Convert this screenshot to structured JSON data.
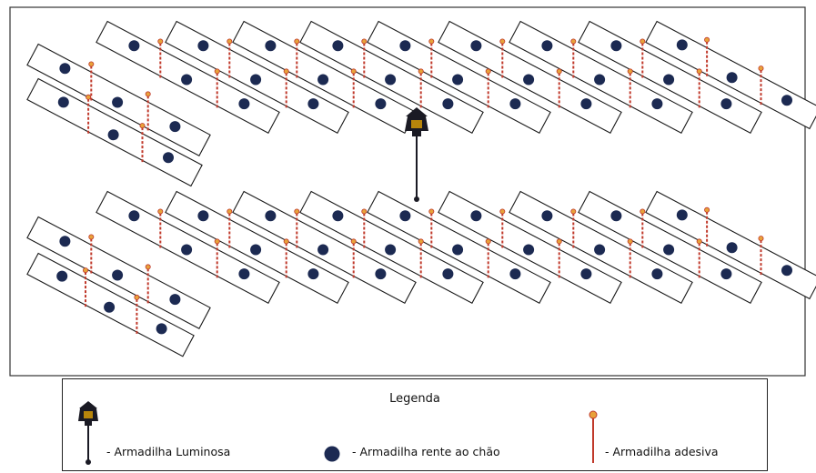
{
  "legend": {
    "title": "Legenda",
    "items": [
      {
        "key": "light",
        "icon": "light-trap-icon",
        "label": "- Armadilha Luminosa"
      },
      {
        "key": "ground",
        "icon": "ground-trap-icon",
        "label": "- Armadilha rente ao chão"
      },
      {
        "key": "sticky",
        "icon": "sticky-trap-icon",
        "label": "- Armadilha adesiva"
      }
    ]
  },
  "colors": {
    "outline": "#1a1a1a",
    "ground_trap": "#1c2a52",
    "sticky_pole": "#c0392b",
    "sticky_top": "#e8a23a",
    "lamp": "#1a1a24"
  }
}
